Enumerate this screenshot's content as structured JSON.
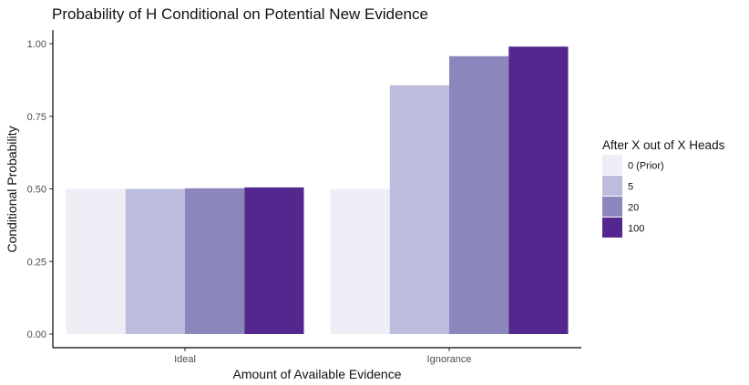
{
  "chart_data": {
    "type": "bar",
    "title": "Probability of H Conditional on Potential New Evidence",
    "xlabel": "Amount of Available Evidence",
    "ylabel": "Conditional Probability",
    "categories": [
      "Ideal",
      "Ignorance"
    ],
    "ylim": [
      0,
      1
    ],
    "yticks": [
      "0.00",
      "0.25",
      "0.50",
      "0.75",
      "1.00"
    ],
    "grid": false,
    "legend": {
      "title": "After X out of X Heads",
      "placement": "right"
    },
    "series": [
      {
        "name": "0 (Prior)",
        "color": "#efedf5",
        "values": [
          0.5,
          0.5
        ]
      },
      {
        "name": "5",
        "color": "#bcbddc",
        "values": [
          0.5,
          0.857
        ]
      },
      {
        "name": "20",
        "color": "#8b87bc",
        "values": [
          0.502,
          0.957
        ]
      },
      {
        "name": "100",
        "color": "#54278f",
        "values": [
          0.505,
          0.99
        ]
      }
    ]
  }
}
